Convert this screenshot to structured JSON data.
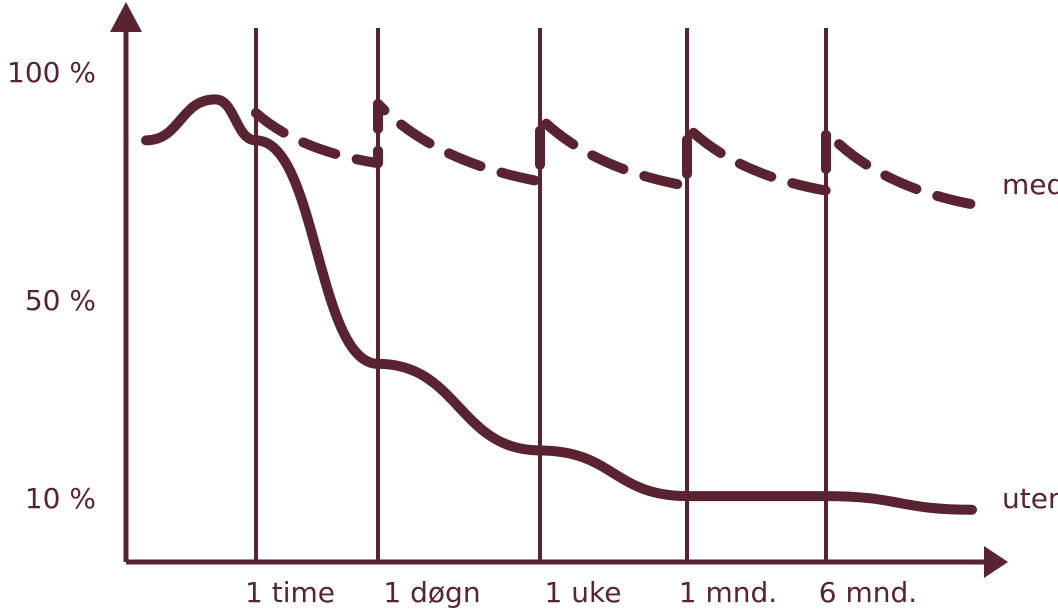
{
  "colors": {
    "ink": "#5a2332",
    "background": "#ffffff"
  },
  "chart_data": {
    "type": "line",
    "title": "",
    "xlabel": "",
    "ylabel": "",
    "grid": false,
    "legend": "inline labels at right end of each line",
    "y_ticks": [
      {
        "label": "100 %",
        "value": 100
      },
      {
        "label": "50 %",
        "value": 50
      },
      {
        "label": "10 %",
        "value": 10
      }
    ],
    "x_ticks": [
      "1 time",
      "1 døgn",
      "1 uke",
      "1 mnd.",
      "6 mnd."
    ],
    "series": [
      {
        "name": "med",
        "style": "dashed",
        "points": [
          {
            "x": "1 time",
            "y": 91
          },
          {
            "x": "1 døgn",
            "y": 80
          },
          {
            "x": "1 døgn",
            "y": 93
          },
          {
            "x": "1 uke",
            "y": 76
          },
          {
            "x": "1 uke",
            "y": 90
          },
          {
            "x": "1 mnd.",
            "y": 75
          },
          {
            "x": "1 mnd.",
            "y": 88
          },
          {
            "x": "6 mnd.",
            "y": 74
          },
          {
            "x": "6 mnd.",
            "y": 87
          },
          {
            "x": "end",
            "y": 71
          }
        ]
      },
      {
        "name": "uten",
        "style": "solid",
        "points": [
          {
            "x": "start",
            "y": 85
          },
          {
            "x": "peak",
            "y": 94
          },
          {
            "x": "1 time",
            "y": 85
          },
          {
            "x": "1 døgn",
            "y": 36
          },
          {
            "x": "1 uke",
            "y": 17
          },
          {
            "x": "1 mnd.",
            "y": 7
          },
          {
            "x": "6 mnd.",
            "y": 7
          },
          {
            "x": "end",
            "y": 4
          }
        ]
      }
    ]
  }
}
